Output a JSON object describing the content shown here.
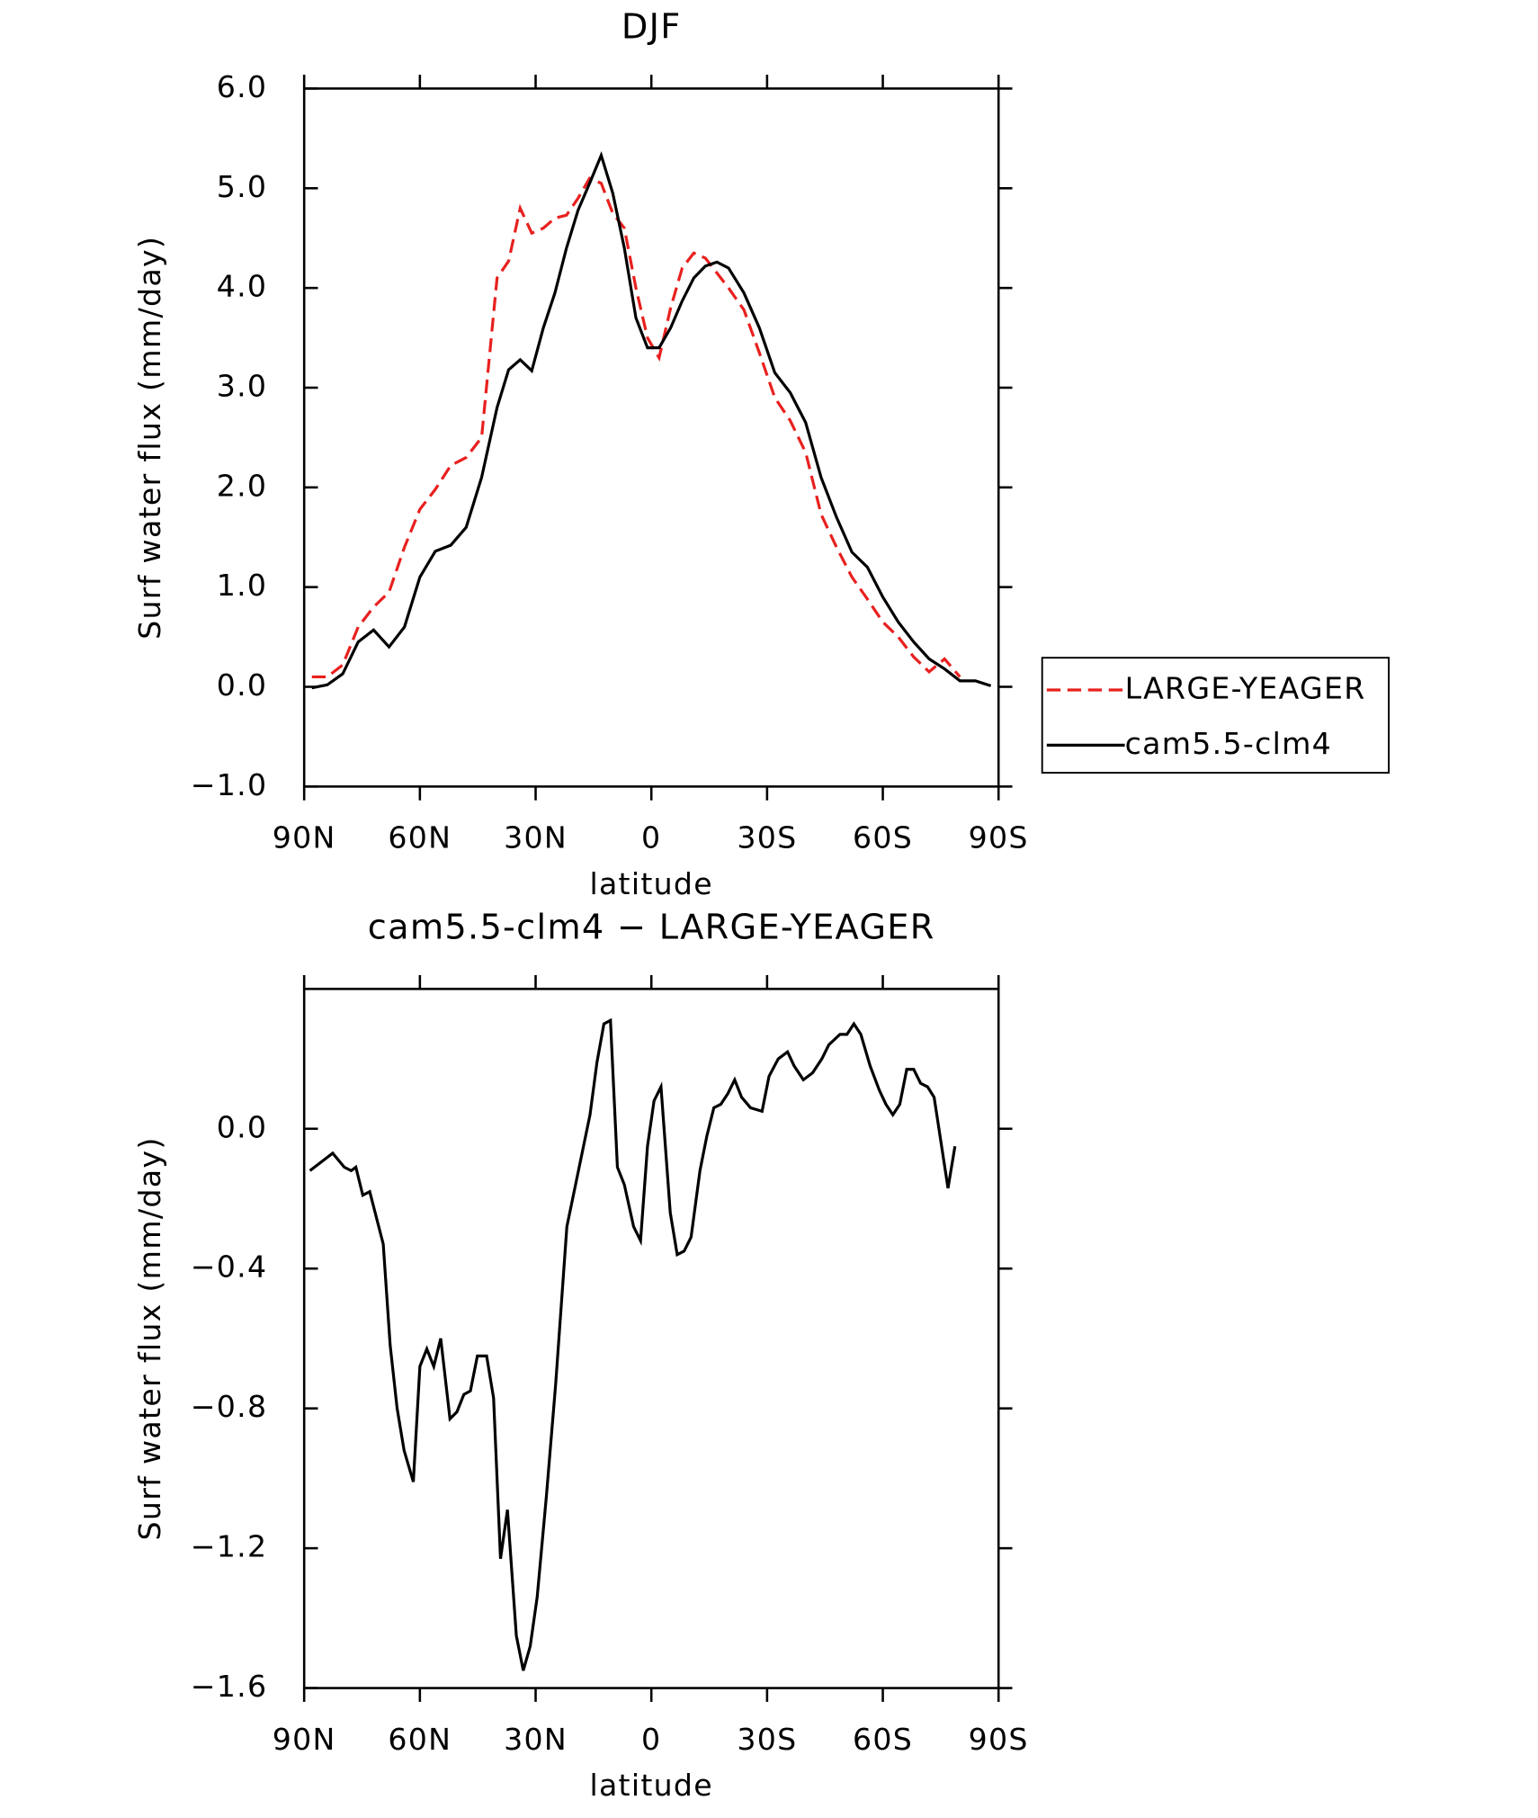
{
  "chart_data": [
    {
      "type": "line",
      "title": "DJF",
      "xlabel": "latitude",
      "ylabel": "Surf water flux (mm/day)",
      "x": [
        88,
        84,
        80,
        76,
        72,
        68,
        64,
        60,
        56,
        52,
        48,
        44,
        40,
        37,
        34,
        31,
        28,
        25,
        22,
        19,
        16,
        13,
        10,
        7,
        4,
        1,
        -2,
        -5,
        -8,
        -11,
        -14,
        -17,
        -20,
        -24,
        -28,
        -32,
        -36,
        -40,
        -44,
        -48,
        -52,
        -56,
        -60,
        -64,
        -68,
        -72,
        -76,
        -80,
        -84,
        -88
      ],
      "series": [
        {
          "name": "LARGE-YEAGER",
          "color": "#e8201e",
          "dash": true,
          "values": [
            0.1,
            0.1,
            0.22,
            0.6,
            0.8,
            0.95,
            1.4,
            1.78,
            1.98,
            2.22,
            2.3,
            2.5,
            4.1,
            4.27,
            4.8,
            4.55,
            4.6,
            4.7,
            4.73,
            4.9,
            5.1,
            5.05,
            4.75,
            4.6,
            4.0,
            3.5,
            3.3,
            3.8,
            4.2,
            4.35,
            4.3,
            4.15,
            4.0,
            3.78,
            3.35,
            2.9,
            2.67,
            2.35,
            1.73,
            1.4,
            1.1,
            0.88,
            0.65,
            0.5,
            0.3,
            0.15,
            0.28,
            0.1,
            null,
            null
          ]
        },
        {
          "name": "cam5.5-clm4",
          "color": "#000000",
          "dash": false,
          "values": [
            -0.01,
            0.02,
            0.13,
            0.45,
            0.57,
            0.4,
            0.6,
            1.1,
            1.36,
            1.42,
            1.6,
            2.1,
            2.8,
            3.18,
            3.28,
            3.17,
            3.6,
            3.95,
            4.4,
            4.78,
            5.05,
            5.33,
            4.95,
            4.4,
            3.7,
            3.4,
            3.4,
            3.6,
            3.87,
            4.1,
            4.22,
            4.26,
            4.2,
            3.95,
            3.6,
            3.15,
            2.95,
            2.65,
            2.1,
            1.7,
            1.35,
            1.2,
            0.9,
            0.65,
            0.45,
            0.28,
            0.18,
            0.06,
            0.06,
            0.01
          ]
        }
      ],
      "xlim": [
        90,
        -90
      ],
      "xticks": [
        {
          "value": 90,
          "label": "90N"
        },
        {
          "value": 60,
          "label": "60N"
        },
        {
          "value": 30,
          "label": "30N"
        },
        0,
        {
          "value": -30,
          "label": "30S"
        },
        {
          "value": -60,
          "label": "60S"
        },
        {
          "value": -90,
          "label": "90S"
        }
      ],
      "ylim": [
        -1,
        6
      ],
      "yticks": [
        {
          "value": -1,
          "label": "−1.0"
        },
        {
          "value": 0,
          "label": "0.0"
        },
        {
          "value": 1,
          "label": "1.0"
        },
        {
          "value": 2,
          "label": "2.0"
        },
        {
          "value": 3,
          "label": "3.0"
        },
        {
          "value": 4,
          "label": "4.0"
        },
        {
          "value": 5,
          "label": "5.0"
        },
        {
          "value": 6,
          "label": "6.0"
        }
      ],
      "legend": "right",
      "grid": false
    },
    {
      "type": "line",
      "title": "cam5.5-clm4 − LARGE-YEAGER",
      "xlabel": "latitude",
      "ylabel": "Surf water flux (mm/day)",
      "x": [
        88.5,
        82.6,
        79.6,
        77.8,
        76.6,
        74.8,
        73,
        69.5,
        67.7,
        65.9,
        64.1,
        61.7,
        60,
        58.2,
        56.4,
        54.6,
        52.2,
        50.4,
        48.6,
        46.9,
        45.1,
        42.7,
        40.9,
        39.1,
        37.3,
        35,
        33.2,
        31.4,
        29.6,
        27.2,
        24.8,
        21.9,
        18.9,
        15.9,
        14.1,
        12.3,
        10.6,
        8.8,
        7,
        4.6,
        2.8,
        1,
        -0.7,
        -2.5,
        -4.9,
        -6.7,
        -8.5,
        -10.3,
        -12.6,
        -14.4,
        -16.2,
        -18,
        -19.8,
        -21.6,
        -23.4,
        -25.7,
        -28.7,
        -30.5,
        -32.9,
        -35.3,
        -37,
        -39.4,
        -41.8,
        -44.2,
        -46,
        -48.9,
        -50.7,
        -52.5,
        -54.3,
        -56.7,
        -59.1,
        -60.8,
        -62.6,
        -64.4,
        -66.2,
        -68,
        -69.8,
        -71.6,
        -73.3,
        -75.1,
        -76.9,
        -78.7
      ],
      "series": [
        {
          "color": "#000000",
          "dash": false,
          "values": [
            -0.12,
            -0.07,
            -0.11,
            -0.12,
            -0.11,
            -0.19,
            -0.18,
            -0.33,
            -0.62,
            -0.8,
            -0.92,
            -1.01,
            -0.68,
            -0.63,
            -0.68,
            -0.6,
            -0.83,
            -0.81,
            -0.76,
            -0.75,
            -0.65,
            -0.65,
            -0.77,
            -1.23,
            -1.09,
            -1.45,
            -1.55,
            -1.48,
            -1.34,
            -1.05,
            -0.73,
            -0.28,
            -0.12,
            0.04,
            0.19,
            0.3,
            0.31,
            -0.11,
            -0.16,
            -0.28,
            -0.32,
            -0.05,
            0.08,
            0.12,
            -0.24,
            -0.36,
            -0.35,
            -0.31,
            -0.12,
            -0.02,
            0.06,
            0.07,
            0.1,
            0.14,
            0.09,
            0.06,
            0.05,
            0.15,
            0.2,
            0.22,
            0.18,
            0.14,
            0.16,
            0.2,
            0.24,
            0.27,
            0.27,
            0.3,
            0.27,
            0.18,
            0.11,
            0.07,
            0.04,
            0.07,
            0.17,
            0.17,
            0.13,
            0.12,
            0.09,
            -0.04,
            -0.17,
            -0.05
          ]
        }
      ],
      "xlim": [
        90,
        -90
      ],
      "xticks": [
        {
          "value": 90,
          "label": "90N"
        },
        {
          "value": 60,
          "label": "60N"
        },
        {
          "value": 30,
          "label": "30N"
        },
        0,
        {
          "value": -30,
          "label": "30S"
        },
        {
          "value": -60,
          "label": "60S"
        },
        {
          "value": -90,
          "label": "90S"
        }
      ],
      "ylim": [
        -1.6,
        0.4
      ],
      "yticks": [
        {
          "value": -1.6,
          "label": "−1.6"
        },
        {
          "value": -1.2,
          "label": "−1.2"
        },
        {
          "value": -0.8,
          "label": "−0.8"
        },
        {
          "value": -0.4,
          "label": "−0.4"
        },
        {
          "value": 0,
          "label": "0.0"
        }
      ],
      "grid": false
    }
  ]
}
